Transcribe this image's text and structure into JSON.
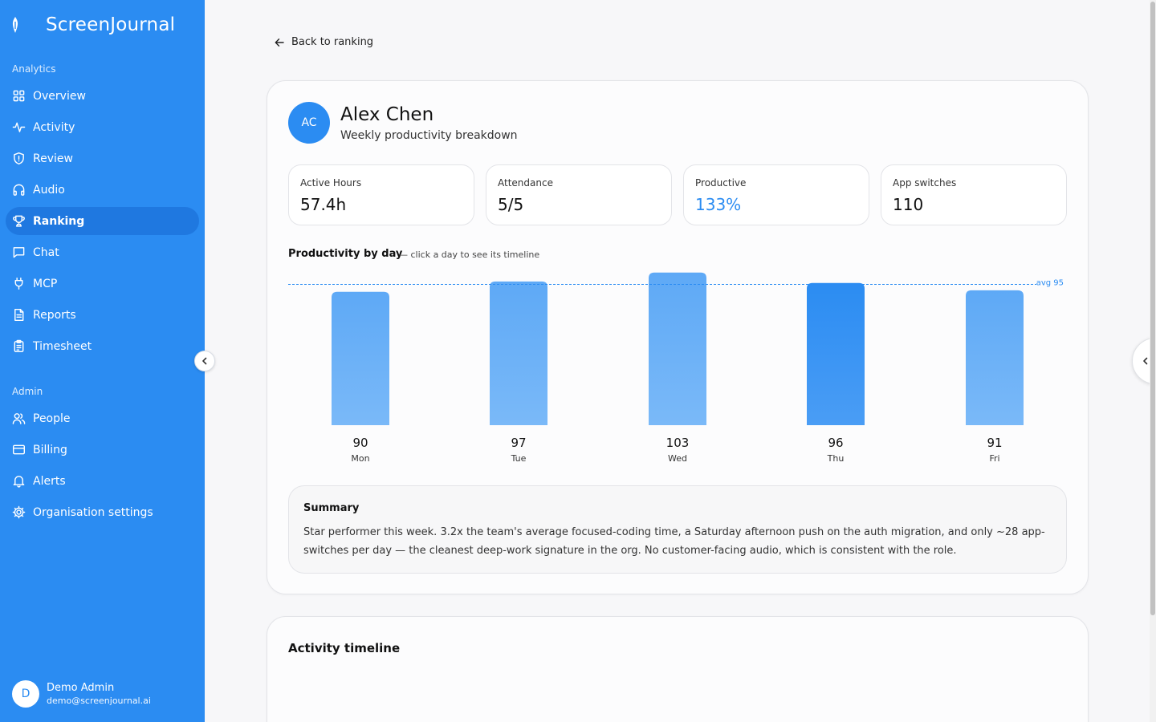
{
  "app": {
    "brand_name": "ScreenJournal",
    "accent": "#2b8cf2"
  },
  "sidebar": {
    "analytics_label": "Analytics",
    "analytics_items": [
      {
        "label": "Overview",
        "icon": "grid-icon"
      },
      {
        "label": "Activity",
        "icon": "pulse-icon"
      },
      {
        "label": "Review",
        "icon": "shield-icon"
      },
      {
        "label": "Audio",
        "icon": "headphones-icon"
      },
      {
        "label": "Ranking",
        "icon": "trophy-icon",
        "active": true
      },
      {
        "label": "Chat",
        "icon": "chat-icon"
      },
      {
        "label": "MCP",
        "icon": "plug-icon"
      },
      {
        "label": "Reports",
        "icon": "document-icon"
      },
      {
        "label": "Timesheet",
        "icon": "clipboard-icon"
      }
    ],
    "admin_label": "Admin",
    "admin_items": [
      {
        "label": "People",
        "icon": "users-icon"
      },
      {
        "label": "Billing",
        "icon": "credit-card-icon"
      },
      {
        "label": "Alerts",
        "icon": "bell-icon"
      },
      {
        "label": "Organisation settings",
        "icon": "gear-icon"
      }
    ],
    "user": {
      "initial": "D",
      "name": "Demo Admin",
      "email": "demo@screenjournal.ai"
    }
  },
  "main": {
    "back_label": "Back to ranking",
    "person": {
      "initials": "AC",
      "name": "Alex Chen",
      "subtitle": "Weekly productivity breakdown"
    },
    "stats": [
      {
        "label": "Active Hours",
        "value": "57.4h"
      },
      {
        "label": "Attendance",
        "value": "5/5"
      },
      {
        "label": "Productive",
        "value": "133%",
        "accent": true
      },
      {
        "label": "App switches",
        "value": "110"
      }
    ],
    "chart_title": "Productivity by day",
    "chart_hint": "— click a day to see its timeline",
    "summary_title": "Summary",
    "summary_text": "Star performer this week. 3.2x the team's average focused-coding time, a Saturday afternoon push on the auth migration, and only ~28 app-switches per day — the cleanest deep-work signature in the org. No customer-facing audio, which is consistent with the role.",
    "timeline_title": "Activity timeline"
  },
  "chart_data": {
    "type": "bar",
    "categories": [
      "Mon",
      "Tue",
      "Wed",
      "Thu",
      "Fri"
    ],
    "values": [
      90,
      97,
      103,
      96,
      91
    ],
    "average": 95,
    "average_label": "avg 95",
    "highlighted": "Thu",
    "bar_color": "#5ea9f6",
    "highlight_color": "#2b8cf2"
  }
}
